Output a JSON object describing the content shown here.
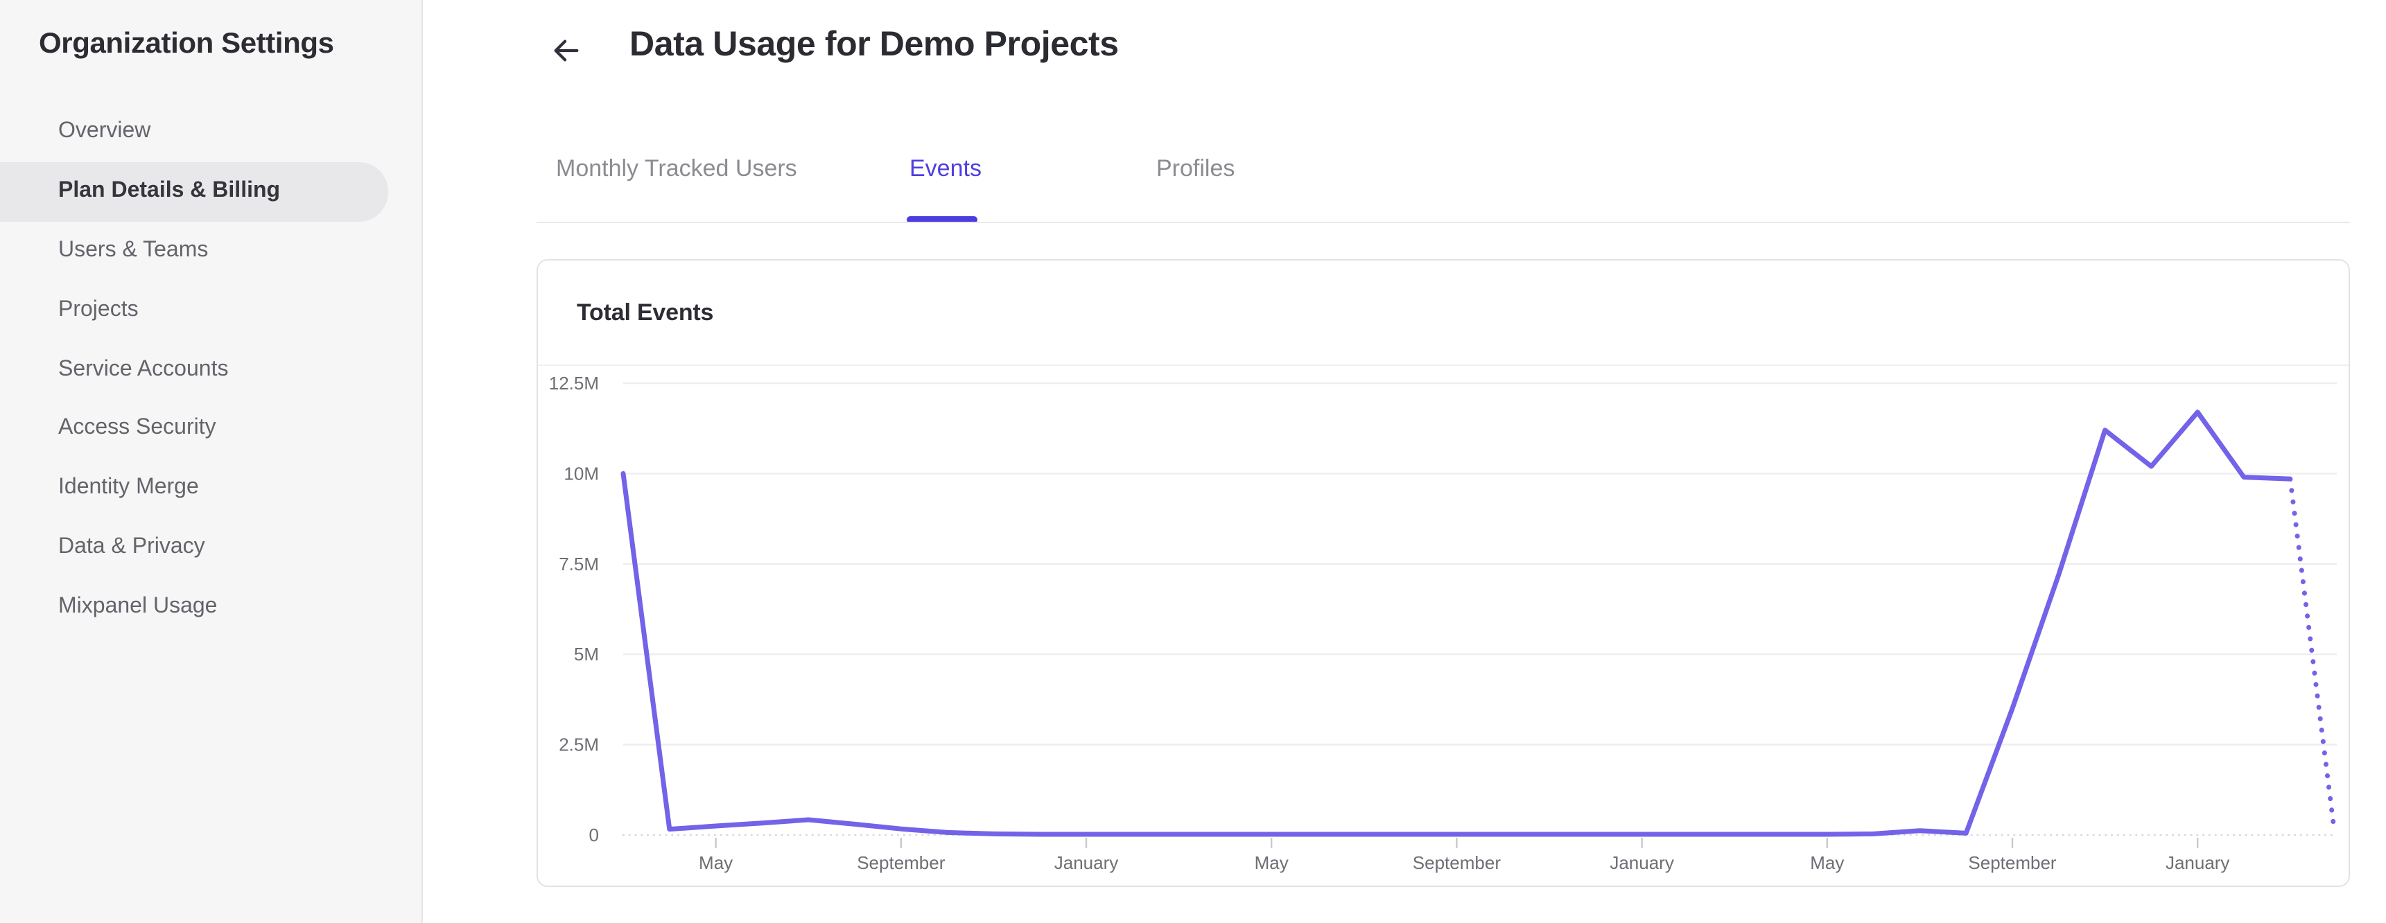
{
  "sidebar": {
    "title": "Organization Settings",
    "items": [
      {
        "label": "Overview",
        "active": false
      },
      {
        "label": "Plan Details & Billing",
        "active": true
      },
      {
        "label": "Users & Teams",
        "active": false
      },
      {
        "label": "Projects",
        "active": false
      },
      {
        "label": "Service Accounts",
        "active": false
      },
      {
        "label": "Access Security",
        "active": false
      },
      {
        "label": "Identity Merge",
        "active": false
      },
      {
        "label": "Data & Privacy",
        "active": false
      },
      {
        "label": "Mixpanel Usage",
        "active": false
      }
    ]
  },
  "header": {
    "back_icon": "arrow-left",
    "title": "Data Usage for Demo Projects"
  },
  "tabs": [
    {
      "label": "Monthly Tracked Users",
      "active": false
    },
    {
      "label": "Events",
      "active": true
    },
    {
      "label": "Profiles",
      "active": false
    }
  ],
  "card": {
    "title": "Total Events"
  },
  "colors": {
    "accent": "#4e3de1",
    "tab_indicator": "#4c3be0",
    "line": "#7263e8",
    "sidebar_active_bg": "#e8e8ea",
    "gridline": "#eeeef0",
    "zero_line": "#d8d8dc",
    "axis_label": "#6e6e75",
    "tick": "#c9c9ce"
  },
  "chart_data": {
    "type": "line",
    "title": "Total Events",
    "point_interval": "monthly",
    "legend": "none",
    "grid": "horizontal",
    "y_axis": {
      "range_millions": [
        0,
        12.5
      ],
      "ticks": [
        {
          "label": "12.5M",
          "value_millions": 12.5
        },
        {
          "label": "10M",
          "value_millions": 10
        },
        {
          "label": "7.5M",
          "value_millions": 7.5
        },
        {
          "label": "5M",
          "value_millions": 5
        },
        {
          "label": "2.5M",
          "value_millions": 2.5
        },
        {
          "label": "0",
          "value_millions": 0
        }
      ]
    },
    "x_axis": {
      "tick_labels": [
        "May",
        "September",
        "January",
        "May",
        "September",
        "January",
        "May",
        "September",
        "January"
      ],
      "tick_point_indices": [
        2,
        6,
        10,
        14,
        18,
        22,
        26,
        30,
        34
      ]
    },
    "series": [
      {
        "name": "Total Events",
        "color": "#7263e8",
        "values_millions": [
          10.0,
          0.16,
          0.25,
          0.33,
          0.42,
          0.3,
          0.17,
          0.07,
          0.03,
          0.02,
          0.02,
          0.02,
          0.02,
          0.02,
          0.02,
          0.02,
          0.02,
          0.02,
          0.02,
          0.02,
          0.02,
          0.02,
          0.02,
          0.02,
          0.02,
          0.02,
          0.02,
          0.03,
          0.12,
          0.05,
          3.5,
          7.2,
          11.2,
          10.2,
          11.7,
          9.9,
          9.85
        ],
        "projection": {
          "style": "dotted",
          "end_point_offset": 0.93,
          "end_value_millions": 0.35
        }
      }
    ]
  }
}
